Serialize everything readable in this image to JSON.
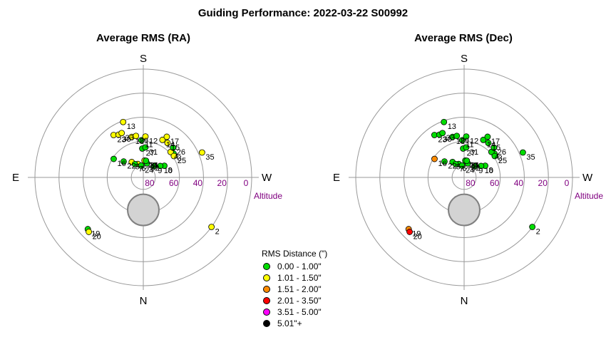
{
  "title": "Guiding Performance: 2022-03-22 S00992",
  "colors": {
    "bin0": "#00dd00",
    "bin1": "#ffff00",
    "bin2": "#ff8c00",
    "bin3": "#ff0000",
    "bin4": "#ff00ff",
    "bin5": "#000000",
    "grid": "#999999",
    "moon_fill": "#d3d3d3",
    "altitude_label": "#800080"
  },
  "legend": {
    "title": "RMS Distance (\")",
    "bins": [
      {
        "label": "0.00 - 1.00\"",
        "color": "#00dd00"
      },
      {
        "label": "1.01 - 1.50\"",
        "color": "#ffff00"
      },
      {
        "label": "1.51 - 2.00\"",
        "color": "#ff8c00"
      },
      {
        "label": "2.01 - 3.50\"",
        "color": "#ff0000"
      },
      {
        "label": "3.51 - 5.00\"",
        "color": "#ff00ff"
      },
      {
        "label": "5.01\"+",
        "color": "#000000"
      }
    ]
  },
  "chart_data": [
    {
      "type": "scatter",
      "projection": "polar-altaz",
      "title": "Average RMS (RA)",
      "compass": {
        "top": "S",
        "bottom": "N",
        "left": "E",
        "right": "W"
      },
      "altitude_ticks": [
        "80",
        "60",
        "40",
        "20",
        "0"
      ],
      "altitude_label": "Altitude",
      "moon": {
        "azimuth": 0,
        "altitude": 63,
        "radius_deg": 13
      },
      "points": [
        {
          "label": "2",
          "az": 306,
          "alt": 20,
          "bin": 1
        },
        {
          "label": "3",
          "az": 232,
          "alt": 58,
          "bin": 0
        },
        {
          "label": "4",
          "az": 227,
          "alt": 59,
          "bin": 1
        },
        {
          "label": "5",
          "az": 143,
          "alt": 74,
          "bin": 1
        },
        {
          "label": "6",
          "az": 158,
          "alt": 78,
          "bin": 1
        },
        {
          "label": "7",
          "az": 148,
          "alt": 77,
          "bin": 0
        },
        {
          "label": "8",
          "az": 241,
          "alt": 70,
          "bin": 0
        },
        {
          "label": "9",
          "az": 224,
          "alt": 77,
          "bin": 0
        },
        {
          "label": "10",
          "az": 236,
          "alt": 73,
          "bin": 0
        },
        {
          "label": "11",
          "az": 177,
          "alt": 59,
          "bin": 0
        },
        {
          "label": "12",
          "az": 183,
          "alt": 56,
          "bin": 1
        },
        {
          "label": "13",
          "az": 160,
          "alt": 41,
          "bin": 1
        },
        {
          "label": "14",
          "az": 207,
          "alt": 55,
          "bin": 1
        },
        {
          "label": "15",
          "az": 215,
          "alt": 55,
          "bin": 1
        },
        {
          "label": "16",
          "az": 122,
          "alt": 61,
          "bin": 0
        },
        {
          "label": "17",
          "az": 210,
          "alt": 51,
          "bin": 1
        },
        {
          "label": "18",
          "az": 164,
          "alt": 55,
          "bin": 1
        },
        {
          "label": "19",
          "az": 47,
          "alt": 27,
          "bin": 0
        },
        {
          "label": "20",
          "az": 45,
          "alt": 26,
          "bin": 1
        },
        {
          "label": "21",
          "az": 189,
          "alt": 76,
          "bin": 1
        },
        {
          "label": "22",
          "az": 129,
          "alt": 69,
          "bin": 0
        },
        {
          "label": "23",
          "az": 145,
          "alt": 47,
          "bin": 1
        },
        {
          "label": "24",
          "az": 170,
          "alt": 80,
          "bin": 0
        },
        {
          "label": "25",
          "az": 235,
          "alt": 59,
          "bin": 1
        },
        {
          "label": "26",
          "az": 225,
          "alt": 55,
          "bin": 0
        },
        {
          "label": "27",
          "az": 178,
          "alt": 66,
          "bin": 0
        },
        {
          "label": "28",
          "az": 184,
          "alt": 76,
          "bin": 1
        },
        {
          "label": "29",
          "az": 170,
          "alt": 55,
          "bin": 1
        },
        {
          "label": "30",
          "az": 150,
          "alt": 49,
          "bin": 1
        },
        {
          "label": "31",
          "az": 184,
          "alt": 65,
          "bin": 0
        },
        {
          "label": "32",
          "az": 195,
          "alt": 78,
          "bin": 0
        },
        {
          "label": "33",
          "az": 154,
          "alt": 49,
          "bin": 1
        },
        {
          "label": "34",
          "az": 189,
          "alt": 76,
          "bin": 0
        },
        {
          "label": "35",
          "az": 247,
          "alt": 37,
          "bin": 1
        }
      ]
    },
    {
      "type": "scatter",
      "projection": "polar-altaz",
      "title": "Average RMS (Dec)",
      "compass": {
        "top": "S",
        "bottom": "N",
        "left": "E",
        "right": "W"
      },
      "altitude_ticks": [
        "80",
        "60",
        "40",
        "20",
        "0"
      ],
      "altitude_label": "Altitude",
      "moon": {
        "azimuth": 0,
        "altitude": 63,
        "radius_deg": 13
      },
      "points": [
        {
          "label": "2",
          "az": 306,
          "alt": 20,
          "bin": 0
        },
        {
          "label": "3",
          "az": 232,
          "alt": 58,
          "bin": 0
        },
        {
          "label": "4",
          "az": 227,
          "alt": 59,
          "bin": 0
        },
        {
          "label": "5",
          "az": 143,
          "alt": 74,
          "bin": 0
        },
        {
          "label": "6",
          "az": 158,
          "alt": 78,
          "bin": 0
        },
        {
          "label": "7",
          "az": 148,
          "alt": 77,
          "bin": 0
        },
        {
          "label": "8",
          "az": 241,
          "alt": 70,
          "bin": 0
        },
        {
          "label": "9",
          "az": 224,
          "alt": 77,
          "bin": 0
        },
        {
          "label": "10",
          "az": 236,
          "alt": 73,
          "bin": 0
        },
        {
          "label": "11",
          "az": 177,
          "alt": 59,
          "bin": 0
        },
        {
          "label": "12",
          "az": 183,
          "alt": 56,
          "bin": 0
        },
        {
          "label": "13",
          "az": 160,
          "alt": 41,
          "bin": 0
        },
        {
          "label": "14",
          "az": 207,
          "alt": 55,
          "bin": 0
        },
        {
          "label": "15",
          "az": 215,
          "alt": 55,
          "bin": 0
        },
        {
          "label": "16",
          "az": 122,
          "alt": 61,
          "bin": 2
        },
        {
          "label": "17",
          "az": 210,
          "alt": 51,
          "bin": 0
        },
        {
          "label": "18",
          "az": 164,
          "alt": 55,
          "bin": 0
        },
        {
          "label": "19",
          "az": 47,
          "alt": 27,
          "bin": 2
        },
        {
          "label": "20",
          "az": 45,
          "alt": 26,
          "bin": 3
        },
        {
          "label": "21",
          "az": 189,
          "alt": 76,
          "bin": 0
        },
        {
          "label": "22",
          "az": 129,
          "alt": 69,
          "bin": 0
        },
        {
          "label": "23",
          "az": 145,
          "alt": 47,
          "bin": 0
        },
        {
          "label": "24",
          "az": 170,
          "alt": 80,
          "bin": 0
        },
        {
          "label": "25",
          "az": 235,
          "alt": 59,
          "bin": 0
        },
        {
          "label": "26",
          "az": 225,
          "alt": 55,
          "bin": 0
        },
        {
          "label": "27",
          "az": 178,
          "alt": 66,
          "bin": 0
        },
        {
          "label": "28",
          "az": 184,
          "alt": 76,
          "bin": 0
        },
        {
          "label": "29",
          "az": 170,
          "alt": 55,
          "bin": 0
        },
        {
          "label": "30",
          "az": 150,
          "alt": 49,
          "bin": 0
        },
        {
          "label": "31",
          "az": 184,
          "alt": 65,
          "bin": 0
        },
        {
          "label": "32",
          "az": 195,
          "alt": 78,
          "bin": 0
        },
        {
          "label": "33",
          "az": 154,
          "alt": 49,
          "bin": 0
        },
        {
          "label": "34",
          "az": 189,
          "alt": 76,
          "bin": 0
        },
        {
          "label": "35",
          "az": 247,
          "alt": 37,
          "bin": 0
        }
      ]
    }
  ]
}
